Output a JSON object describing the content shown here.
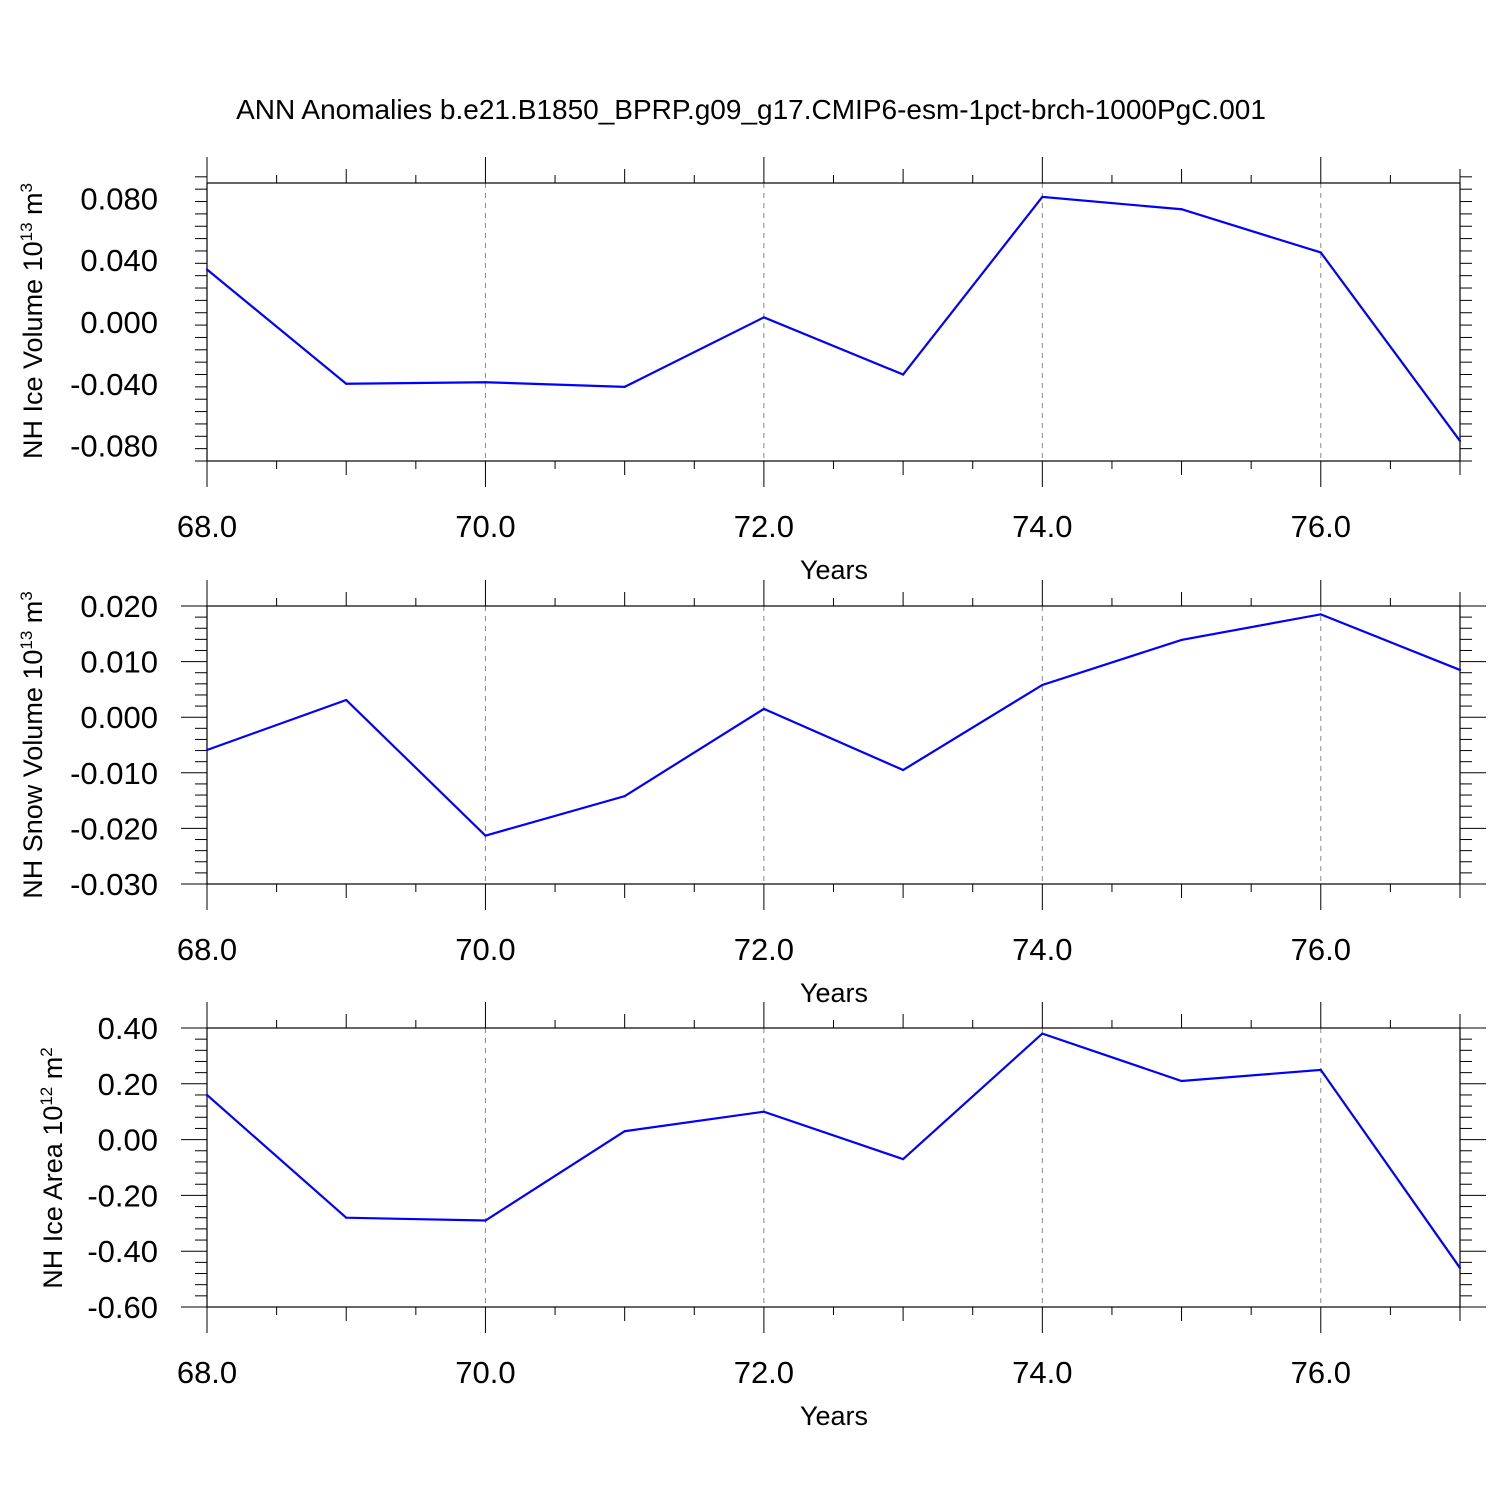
{
  "title": "ANN Anomalies b.e21.B1850_BPRP.g09_g17.CMIP6-esm-1pct-brch-1000PgC.001",
  "colors": {
    "series": "#0000ff",
    "axis": "#000000",
    "grid": "#888888"
  },
  "chart_data": [
    {
      "type": "line",
      "xlabel": "Years",
      "ylabel": {
        "prefix": "NH Ice Volume 10",
        "exponent": "13",
        "unit": " m",
        "unit_exponent": "3"
      },
      "x": [
        68,
        69,
        70,
        71,
        72,
        73,
        74,
        75,
        76,
        77
      ],
      "values": [
        0.034,
        -0.04,
        -0.039,
        -0.042,
        0.003,
        -0.034,
        0.081,
        0.073,
        0.045,
        -0.077
      ],
      "xlim": [
        68,
        77
      ],
      "ylim": [
        -0.09,
        0.09
      ],
      "xticks": [
        68,
        70,
        72,
        74,
        76
      ],
      "xtick_labels": [
        "68.0",
        "70.0",
        "72.0",
        "74.0",
        "76.0"
      ],
      "yticks": [
        -0.08,
        -0.04,
        0.0,
        0.04,
        0.08
      ],
      "ytick_labels": [
        "-0.080",
        "-0.040",
        "0.000",
        "0.040",
        "0.080"
      ],
      "grid": "vertical dashed at major x ticks"
    },
    {
      "type": "line",
      "xlabel": "Years",
      "ylabel": {
        "prefix": "NH Snow Volume 10",
        "exponent": "13",
        "unit": " m",
        "unit_exponent": "3"
      },
      "x": [
        68,
        69,
        70,
        71,
        72,
        73,
        74,
        75,
        76,
        77
      ],
      "values": [
        -0.0059,
        0.0031,
        -0.0213,
        -0.0142,
        0.0015,
        -0.0095,
        0.0058,
        0.0139,
        0.0185,
        0.0085
      ],
      "xlim": [
        68,
        77
      ],
      "ylim": [
        -0.03,
        0.02
      ],
      "xticks": [
        68,
        70,
        72,
        74,
        76
      ],
      "xtick_labels": [
        "68.0",
        "70.0",
        "72.0",
        "74.0",
        "76.0"
      ],
      "yticks": [
        -0.03,
        -0.02,
        -0.01,
        0.0,
        0.01,
        0.02
      ],
      "ytick_labels": [
        "-0.030",
        "-0.020",
        "-0.010",
        "0.000",
        "0.010",
        "0.020"
      ],
      "grid": "vertical dashed at major x ticks"
    },
    {
      "type": "line",
      "xlabel": "Years",
      "ylabel": {
        "prefix": "NH Ice Area 10",
        "exponent": "12",
        "unit": " m",
        "unit_exponent": "2"
      },
      "x": [
        68,
        69,
        70,
        71,
        72,
        73,
        74,
        75,
        76,
        77
      ],
      "values": [
        0.16,
        -0.28,
        -0.29,
        0.03,
        0.1,
        -0.07,
        0.38,
        0.21,
        0.25,
        -0.46
      ],
      "xlim": [
        68,
        77
      ],
      "ylim": [
        -0.6,
        0.4
      ],
      "xticks": [
        68,
        70,
        72,
        74,
        76
      ],
      "xtick_labels": [
        "68.0",
        "70.0",
        "72.0",
        "74.0",
        "76.0"
      ],
      "yticks": [
        -0.6,
        -0.4,
        -0.2,
        0.0,
        0.2,
        0.4
      ],
      "ytick_labels": [
        "-0.60",
        "-0.40",
        "-0.20",
        "0.00",
        "0.20",
        "0.40"
      ],
      "grid": "vertical dashed at major x ticks"
    }
  ]
}
